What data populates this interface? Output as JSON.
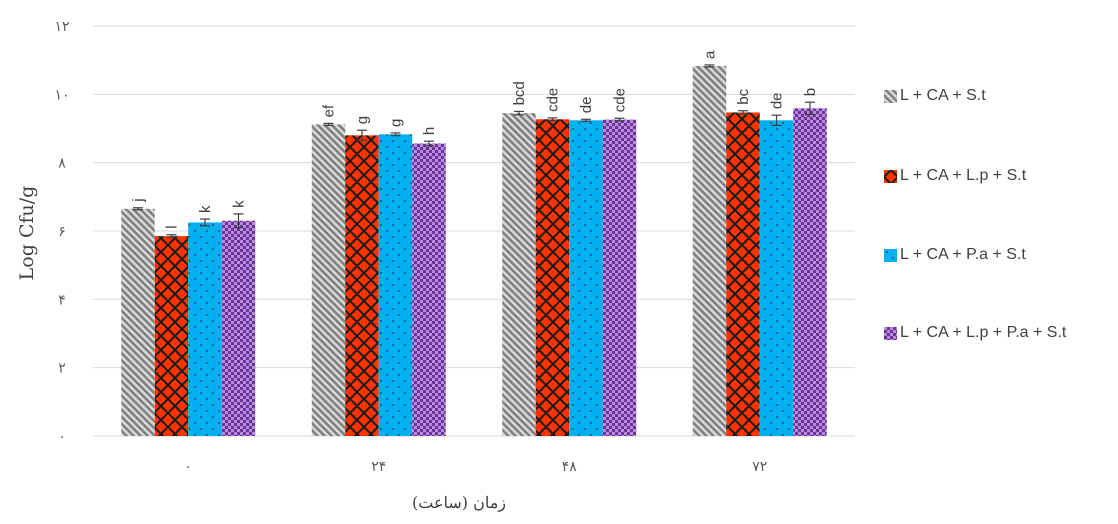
{
  "chart_data": {
    "type": "bar",
    "title": "",
    "xlabel": "زمان (ساعت)",
    "ylabel": "Log Cfu/g",
    "ylim": [
      0,
      12
    ],
    "yticks": [
      0,
      2,
      4,
      6,
      8,
      10,
      12
    ],
    "ytick_labels": [
      "۰",
      "۲",
      "۴",
      "۶",
      "۸",
      "۱۰",
      "۱۲"
    ],
    "categories": [
      "۰",
      "۲۴",
      "۴۸",
      "۷۲"
    ],
    "grid": true,
    "legend_position": "right",
    "series": [
      {
        "name": "L + CA + S.t",
        "color": "#a6a6a6",
        "pattern": "diagonal-stripes",
        "values": [
          6.65,
          9.12,
          9.45,
          10.83
        ],
        "errors": [
          0.03,
          0.03,
          0.05,
          0.03
        ],
        "labels": [
          "j",
          "ef",
          "bcd",
          "a"
        ]
      },
      {
        "name": "L + CA + L.p + S.t",
        "color": "#ff3300",
        "pattern": "lattice",
        "values": [
          5.85,
          8.8,
          9.27,
          9.47
        ],
        "errors": [
          0.04,
          0.15,
          0.04,
          0.05
        ],
        "labels": [
          "l",
          "g",
          "cde",
          "bc"
        ]
      },
      {
        "name": "L + CA + P.a + S.t",
        "color": "#00b0f0",
        "pattern": "dots",
        "values": [
          6.25,
          8.83,
          9.24,
          9.24
        ],
        "errors": [
          0.1,
          0.04,
          0.03,
          0.15
        ],
        "labels": [
          "k",
          "g",
          "de",
          "de"
        ]
      },
      {
        "name": "L + CA + L.p + P.a + S.t",
        "color": "#7030a0",
        "pattern": "crosshatch",
        "values": [
          6.3,
          8.56,
          9.26,
          9.59
        ],
        "errors": [
          0.2,
          0.07,
          0.04,
          0.18
        ],
        "labels": [
          "k",
          "h",
          "cde",
          "b"
        ]
      }
    ]
  }
}
